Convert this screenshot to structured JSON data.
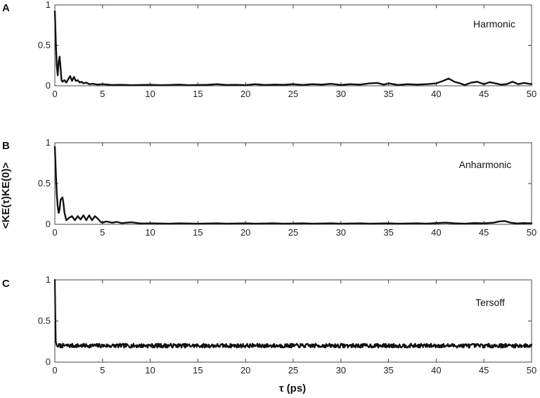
{
  "chart_data": {
    "type": "line",
    "xlabel": "τ (ps)",
    "ylabel": "<KE(τ)KE(0)>",
    "xlim": [
      0,
      50
    ],
    "ylim": [
      0,
      1
    ],
    "xticks": [
      0,
      5,
      10,
      15,
      20,
      25,
      30,
      35,
      40,
      45,
      50
    ],
    "yticks": [
      0,
      0.5,
      1
    ],
    "grid": false,
    "panels": [
      {
        "letter": "A",
        "label": "Harmonic",
        "series": [
          {
            "x": [
              0,
              0.1,
              0.2,
              0.3,
              0.4,
              0.5,
              0.6,
              0.7,
              0.8,
              0.9,
              1.0,
              1.2,
              1.4,
              1.6,
              1.8,
              2.0,
              2.2,
              2.4,
              2.6,
              2.8,
              3.0,
              3.3,
              3.6,
              4.0,
              4.5,
              5.0,
              6,
              7,
              8,
              9,
              10,
              11,
              12,
              13,
              14,
              15,
              16,
              17,
              18,
              19,
              20,
              21,
              22,
              23,
              24,
              25,
              26,
              27,
              28,
              29,
              30,
              31,
              32,
              33,
              33.8,
              34.5,
              35,
              36,
              37,
              38,
              39,
              40,
              40.7,
              41.3,
              41.9,
              42.5,
              43,
              43.7,
              44.3,
              45,
              45.6,
              46.2,
              46.8,
              47.4,
              48,
              48.6,
              49.2,
              50
            ],
            "y": [
              0.92,
              0.55,
              0.25,
              0.13,
              0.3,
              0.36,
              0.22,
              0.07,
              0.05,
              0.06,
              0.07,
              0.04,
              0.08,
              0.12,
              0.06,
              0.11,
              0.06,
              0.07,
              0.04,
              0.05,
              0.03,
              0.04,
              0.02,
              0.025,
              0.015,
              0.02,
              0.01,
              0.012,
              0.008,
              0.01,
              0.012,
              0.008,
              0.01,
              0.015,
              0.008,
              0.01,
              0.012,
              0.02,
              0.01,
              0.012,
              0.008,
              0.02,
              0.01,
              0.015,
              0.012,
              0.02,
              0.01,
              0.02,
              0.015,
              0.025,
              0.01,
              0.02,
              0.015,
              0.03,
              0.035,
              0.015,
              0.03,
              0.01,
              0.02,
              0.015,
              0.02,
              0.03,
              0.06,
              0.09,
              0.05,
              0.03,
              0.01,
              0.04,
              0.05,
              0.02,
              0.045,
              0.03,
              0.015,
              0.02,
              0.05,
              0.02,
              0.035,
              0.02
            ]
          }
        ]
      },
      {
        "letter": "B",
        "label": "Anharmonic",
        "series": [
          {
            "x": [
              0,
              0.1,
              0.2,
              0.3,
              0.4,
              0.5,
              0.6,
              0.8,
              0.9,
              1.0,
              1.2,
              1.5,
              1.8,
              2.1,
              2.4,
              2.7,
              3.0,
              3.3,
              3.6,
              3.9,
              4.2,
              4.5,
              4.8,
              5.0,
              5.4,
              6,
              6.5,
              7,
              7.5,
              8,
              9,
              10,
              11,
              12,
              13,
              14,
              15,
              16,
              17,
              18,
              19,
              20,
              21,
              22,
              23,
              24,
              25,
              26,
              27,
              28,
              29,
              30,
              31,
              32,
              33,
              34,
              35,
              36,
              37,
              38,
              39,
              40,
              41,
              42,
              43,
              44,
              45,
              46,
              46.6,
              47.2,
              47.8,
              48.5,
              49.2,
              50
            ],
            "y": [
              0.95,
              0.65,
              0.38,
              0.22,
              0.14,
              0.18,
              0.3,
              0.33,
              0.26,
              0.15,
              0.05,
              0.08,
              0.1,
              0.05,
              0.1,
              0.06,
              0.11,
              0.05,
              0.11,
              0.05,
              0.1,
              0.07,
              0.03,
              0.02,
              0.035,
              0.02,
              0.03,
              0.015,
              0.02,
              0.025,
              0.01,
              0.012,
              0.01,
              0.008,
              0.012,
              0.01,
              0.008,
              0.01,
              0.012,
              0.008,
              0.01,
              0.012,
              0.008,
              0.01,
              0.012,
              0.008,
              0.01,
              0.012,
              0.008,
              0.01,
              0.012,
              0.008,
              0.01,
              0.012,
              0.008,
              0.01,
              0.012,
              0.008,
              0.01,
              0.012,
              0.008,
              0.015,
              0.02,
              0.012,
              0.008,
              0.015,
              0.012,
              0.02,
              0.035,
              0.04,
              0.02,
              0.01,
              0.015,
              0.012
            ]
          }
        ]
      },
      {
        "letter": "C",
        "label": "Tersoff",
        "series": [
          {
            "x": [
              0,
              0.05,
              0.1,
              0.2,
              0.3,
              50
            ],
            "y": [
              1.0,
              0.6,
              0.25,
              0.2,
              0.19,
              0.2
            ]
          }
        ]
      }
    ]
  },
  "style": {
    "line_color": "#111111",
    "axis_color": "#444444"
  }
}
